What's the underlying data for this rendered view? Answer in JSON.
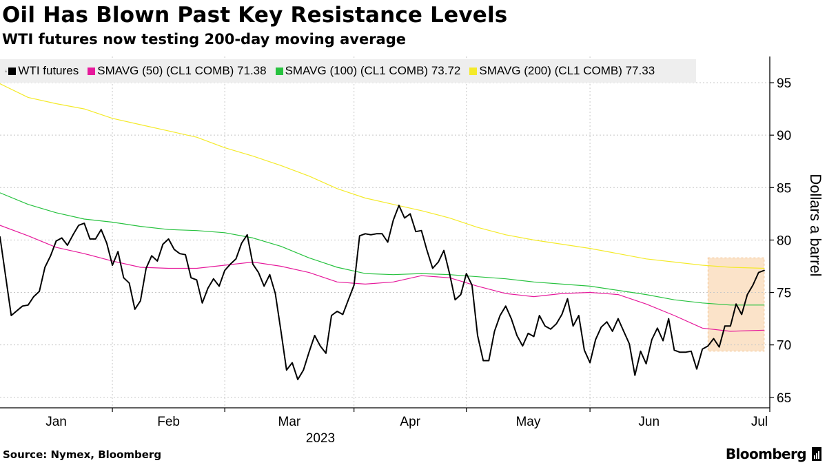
{
  "header": {
    "title": "Oil Has Blown Past Key Resistance Levels",
    "subtitle": "WTI futures now testing 200-day moving average"
  },
  "legend": [
    {
      "label": "WTI futures",
      "color": "#000000"
    },
    {
      "label": "SMAVG (50) (CL1 COMB) 71.38",
      "color": "#e6199b"
    },
    {
      "label": "SMAVG (100) (CL1 COMB) 73.72",
      "color": "#27c23f"
    },
    {
      "label": "SMAVG (200) (CL1 COMB) 77.33",
      "color": "#f4ea2a"
    }
  ],
  "legend_marker": "⍖",
  "footer": {
    "source": "Source: Nymex, Bloomberg",
    "brand": "Bloomberg"
  },
  "chart_data": {
    "type": "line",
    "title": "Oil Has Blown Past Key Resistance Levels",
    "subtitle": "WTI futures now testing 200-day moving average",
    "ylabel": "Dollars a barrel",
    "xlabel": "2023",
    "ylim": [
      64,
      97.5
    ],
    "xlim": [
      0,
      137
    ],
    "y_ticks": [
      65,
      70,
      75,
      80,
      85,
      90,
      95
    ],
    "x_months": [
      {
        "label": "Jan",
        "start": 0,
        "end": 20
      },
      {
        "label": "Feb",
        "start": 20,
        "end": 40
      },
      {
        "label": "Mar",
        "start": 40,
        "end": 63
      },
      {
        "label": "Apr",
        "start": 63,
        "end": 83
      },
      {
        "label": "May",
        "start": 83,
        "end": 105
      },
      {
        "label": "Jun",
        "start": 105,
        "end": 126
      },
      {
        "label": "Jul",
        "start": 137,
        "end": 137
      }
    ],
    "year_label": "2023",
    "highlight": {
      "x_start": 126,
      "x_end": 136,
      "y_low": 69.4,
      "y_high": 78.3,
      "color": "#fbe3c9"
    },
    "grid": true,
    "series": [
      {
        "name": "WTI futures",
        "color": "#000000",
        "width": 2,
        "x": [
          0,
          2,
          4,
          5,
          6,
          7,
          8,
          9,
          10,
          11,
          12,
          13,
          14,
          15,
          16,
          17,
          18,
          19,
          20,
          21,
          22,
          23,
          24,
          25,
          26,
          27,
          28,
          29,
          30,
          31,
          32,
          33,
          34,
          35,
          36,
          37,
          38,
          39,
          40,
          41,
          42,
          43,
          44,
          45,
          46,
          47,
          48,
          49,
          50,
          51,
          52,
          53,
          54,
          55,
          56,
          57,
          58,
          59,
          60,
          61,
          62,
          63,
          64,
          65,
          66,
          67,
          68,
          69,
          70,
          71,
          72,
          73,
          74,
          75,
          76,
          77,
          78,
          79,
          80,
          81,
          82,
          83,
          84,
          85,
          86,
          87,
          88,
          89,
          90,
          91,
          92,
          93,
          94,
          95,
          96,
          97,
          98,
          99,
          100,
          101,
          102,
          103,
          104,
          105,
          106,
          107,
          108,
          109,
          110,
          111,
          112,
          113,
          114,
          115,
          116,
          117,
          118,
          119,
          120,
          121,
          122,
          123,
          124,
          125,
          126,
          127,
          128,
          129,
          130,
          131,
          132,
          133,
          134,
          135,
          136
        ],
        "values": [
          80.3,
          72.8,
          73.7,
          73.8,
          74.6,
          75.1,
          77.4,
          78.5,
          79.9,
          80.2,
          79.5,
          80.5,
          81.4,
          81.6,
          80.1,
          80.1,
          81.0,
          79.7,
          77.6,
          78.9,
          76.4,
          75.9,
          73.4,
          74.2,
          77.3,
          78.5,
          78.0,
          79.6,
          80.1,
          79.1,
          78.7,
          78.6,
          76.4,
          76.2,
          74.0,
          75.4,
          76.3,
          75.6,
          77.1,
          77.7,
          78.2,
          79.7,
          80.5,
          77.7,
          76.9,
          75.6,
          76.7,
          74.9,
          71.3,
          67.6,
          68.3,
          66.7,
          67.6,
          69.3,
          70.9,
          69.9,
          69.2,
          72.8,
          73.2,
          72.9,
          74.3,
          75.7,
          80.4,
          80.6,
          80.5,
          80.6,
          80.6,
          79.8,
          81.9,
          83.3,
          82.1,
          82.5,
          80.8,
          80.9,
          79.0,
          77.3,
          77.9,
          79.0,
          76.8,
          74.3,
          74.8,
          76.8,
          75.7,
          70.9,
          68.5,
          68.5,
          71.3,
          72.8,
          73.7,
          72.5,
          70.9,
          69.9,
          71.1,
          70.8,
          72.8,
          71.8,
          71.5,
          72.0,
          72.9,
          74.4,
          71.8,
          72.8,
          69.5,
          68.3,
          70.5,
          71.7,
          72.2,
          71.3,
          72.5,
          71.3,
          70.1,
          67.1,
          69.4,
          68.2,
          70.5,
          71.6,
          70.4,
          72.5,
          69.5,
          69.3,
          69.3,
          69.4,
          67.7,
          69.6,
          69.9,
          70.6,
          69.8,
          71.8,
          71.8,
          73.9,
          72.9,
          74.8,
          75.7,
          76.9,
          77.1
        ]
      },
      {
        "name": "SMAVG (50)",
        "color": "#e6199b",
        "width": 1.2,
        "x": [
          0,
          5,
          10,
          15,
          20,
          25,
          30,
          35,
          40,
          45,
          50,
          55,
          60,
          65,
          70,
          75,
          80,
          85,
          90,
          95,
          100,
          105,
          110,
          115,
          120,
          125,
          130,
          136
        ],
        "values": [
          81.4,
          80.4,
          79.3,
          78.7,
          78.0,
          77.4,
          77.3,
          77.3,
          77.6,
          77.9,
          77.5,
          76.9,
          76.0,
          75.8,
          76.0,
          76.6,
          76.4,
          75.6,
          74.9,
          74.6,
          74.9,
          75.0,
          74.8,
          73.9,
          72.8,
          71.6,
          71.3,
          71.4
        ]
      },
      {
        "name": "SMAVG (100)",
        "color": "#27c23f",
        "width": 1.2,
        "x": [
          0,
          5,
          10,
          15,
          20,
          25,
          30,
          35,
          40,
          45,
          50,
          55,
          60,
          65,
          70,
          75,
          80,
          85,
          90,
          95,
          100,
          105,
          110,
          115,
          120,
          125,
          130,
          136
        ],
        "values": [
          84.5,
          83.4,
          82.6,
          82.0,
          81.7,
          81.3,
          81.0,
          80.9,
          80.7,
          80.2,
          79.4,
          78.3,
          77.4,
          76.8,
          76.7,
          76.8,
          76.7,
          76.5,
          76.3,
          76.0,
          75.8,
          75.6,
          75.2,
          74.8,
          74.3,
          74.0,
          73.8,
          73.8
        ]
      },
      {
        "name": "SMAVG (200)",
        "color": "#f4ea2a",
        "width": 1.2,
        "x": [
          0,
          5,
          10,
          15,
          20,
          25,
          30,
          35,
          40,
          45,
          50,
          55,
          60,
          65,
          70,
          75,
          80,
          85,
          90,
          95,
          100,
          105,
          110,
          115,
          120,
          125,
          130,
          136
        ],
        "values": [
          94.9,
          93.6,
          93.0,
          92.5,
          91.6,
          91.0,
          90.4,
          89.8,
          88.8,
          88.0,
          87.1,
          86.1,
          84.9,
          84.0,
          83.4,
          82.8,
          82.1,
          81.2,
          80.5,
          80.0,
          79.6,
          79.2,
          78.7,
          78.2,
          77.9,
          77.6,
          77.4,
          77.3
        ]
      }
    ]
  }
}
